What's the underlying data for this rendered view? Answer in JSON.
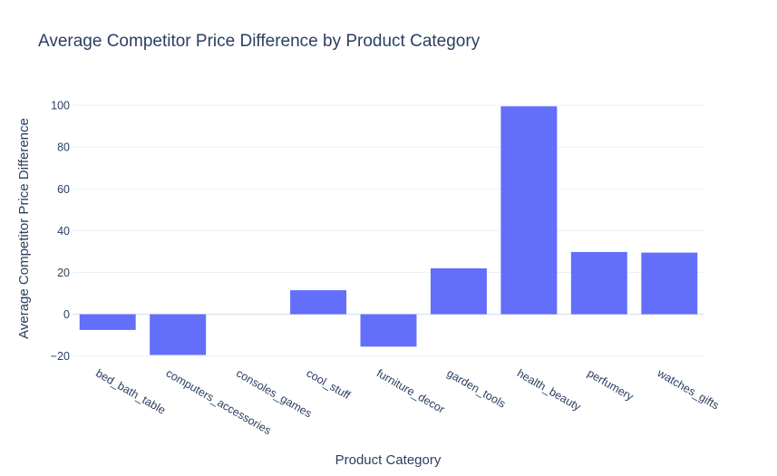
{
  "chart_data": {
    "type": "bar",
    "title": "Average Competitor Price Difference by Product Category",
    "xlabel": "Product Category",
    "ylabel": "Average Competitor Price Difference",
    "categories": [
      "bed_bath_table",
      "computers_accessories",
      "consoles_games",
      "cool_stuff",
      "furniture_decor",
      "garden_tools",
      "health_beauty",
      "perfumery",
      "watches_gifts"
    ],
    "values": [
      -7.5,
      -19.5,
      0,
      11.5,
      -15.5,
      22,
      99.5,
      29.8,
      29.5
    ],
    "yticks": [
      -20,
      0,
      20,
      40,
      60,
      80,
      100
    ],
    "ytick_labels": [
      "−20",
      "0",
      "20",
      "40",
      "60",
      "80",
      "100"
    ],
    "ylim": [
      -21,
      107
    ],
    "bar_color": "#636efa",
    "grid": true,
    "legend": "none"
  }
}
